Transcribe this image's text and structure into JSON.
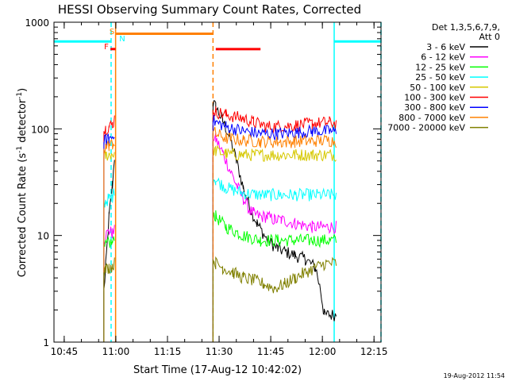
{
  "chart_data": {
    "type": "line",
    "title": "HESSI Observing Summary Count Rates, Corrected",
    "xlabel": "Start Time (17-Aug-12 10:42:02)",
    "ylabel_main": "Corrected Count Rate (s",
    "ylabel_sup1": "-1",
    "ylabel_mid": " detector",
    "ylabel_sup2": "-1",
    "ylabel_end": ")",
    "y_scale": "log",
    "ylim": [
      1,
      1000
    ],
    "xlim_min": [
      0,
      95
    ],
    "x_unit": "minutes after 10:42:02",
    "x_ticks": [
      {
        "label": "10:45",
        "min": 2.97
      },
      {
        "label": "11:00",
        "min": 17.97
      },
      {
        "label": "11:15",
        "min": 32.97
      },
      {
        "label": "11:30",
        "min": 47.97
      },
      {
        "label": "11:45",
        "min": 62.97
      },
      {
        "label": "12:00",
        "min": 77.97
      },
      {
        "label": "12:15",
        "min": 92.97
      }
    ],
    "y_ticks": [
      {
        "label": "1",
        "value": 1
      },
      {
        "label": "10",
        "value": 10
      },
      {
        "label": "100",
        "value": 100
      },
      {
        "label": "1000",
        "value": 1000
      }
    ],
    "legend_header": [
      "Det 1,3,5,6,7,9,",
      "Att 0"
    ],
    "legend_position": "right",
    "footer_date": "19-Aug-2012 11:54",
    "data_gaps": [
      [
        0,
        14.5
      ],
      [
        17.9,
        46.2
      ],
      [
        82.0,
        95
      ]
    ],
    "series": [
      {
        "name": "3 - 6 keV",
        "color": "#000000",
        "x": [
          14.5,
          15.0,
          16.0,
          17.0,
          17.6,
          46.2,
          47.0,
          49.0,
          51.0,
          53.0,
          55.0,
          57.0,
          59.0,
          62.0,
          65.0,
          70.0,
          73.0,
          76.0,
          77.5,
          78.5,
          80.0,
          82.0
        ],
        "y": [
          3,
          5,
          15,
          30,
          55,
          175,
          160,
          120,
          85,
          50,
          28,
          18,
          13,
          9,
          7.5,
          6.5,
          6,
          5,
          3,
          1.8,
          1.8,
          1.8
        ]
      },
      {
        "name": "6 - 12 keV",
        "color": "#ff00ff",
        "x": [
          14.5,
          15.0,
          16.0,
          17.0,
          17.6,
          46.2,
          47.0,
          49.0,
          51.0,
          53.0,
          55.0,
          57.0,
          58.0,
          60.0,
          62.0,
          64.0,
          66.0,
          70.0,
          75.0,
          80.0,
          82.0
        ],
        "y": [
          9,
          10,
          11,
          10.5,
          11,
          85,
          80,
          60,
          42,
          30,
          22,
          17,
          16,
          15,
          15,
          14,
          14,
          13,
          12,
          12,
          12
        ]
      },
      {
        "name": "12 - 25 keV",
        "color": "#00ff00",
        "x": [
          14.5,
          15.0,
          16.0,
          17.0,
          17.6,
          46.2,
          47.0,
          50.0,
          55.0,
          60.0,
          65.0,
          70.0,
          75.0,
          80.0,
          82.0
        ],
        "y": [
          7.5,
          8,
          8.5,
          8.5,
          9,
          16,
          15,
          12,
          10,
          9,
          9,
          9,
          9,
          9,
          9
        ]
      },
      {
        "name": "25 - 50 keV",
        "color": "#00ffff",
        "x": [
          14.5,
          15.0,
          16.0,
          17.0,
          17.6,
          46.2,
          47.0,
          50.0,
          55.0,
          60.0,
          65.0,
          70.0,
          75.0,
          80.0,
          82.0
        ],
        "y": [
          20,
          21,
          22,
          23,
          26,
          35,
          33,
          28,
          25,
          24,
          24,
          24,
          24,
          24,
          24
        ]
      },
      {
        "name": "50 - 100 keV",
        "color": "#d6c800",
        "x": [
          14.5,
          15.0,
          16.0,
          17.0,
          17.6,
          46.2,
          47.0,
          50.0,
          55.0,
          60.0,
          65.0,
          70.0,
          75.0,
          80.0,
          82.0
        ],
        "y": [
          55,
          56,
          58,
          58,
          60,
          65,
          62,
          58,
          57,
          57,
          57,
          57,
          57,
          57,
          57
        ]
      },
      {
        "name": "100 - 300 keV",
        "color": "#ff0000",
        "x": [
          14.5,
          15.0,
          16.0,
          17.0,
          17.6,
          46.2,
          47.0,
          50.0,
          55.0,
          58.0,
          62.0,
          66.0,
          70.0,
          75.0,
          80.0,
          82.0
        ],
        "y": [
          95,
          100,
          105,
          110,
          125,
          150,
          145,
          135,
          125,
          115,
          105,
          105,
          108,
          112,
          115,
          112
        ]
      },
      {
        "name": "300 - 800 keV",
        "color": "#0000ff",
        "x": [
          14.5,
          15.0,
          16.0,
          17.0,
          17.6,
          46.2,
          47.0,
          50.0,
          55.0,
          60.0,
          65.0,
          70.0,
          75.0,
          80.0,
          82.0
        ],
        "y": [
          75,
          78,
          80,
          85,
          95,
          120,
          115,
          105,
          95,
          90,
          90,
          92,
          95,
          95,
          93
        ]
      },
      {
        "name": "800 - 7000 keV",
        "color": "#ff8000",
        "x": [
          14.5,
          15.0,
          16.0,
          17.0,
          17.6,
          46.2,
          47.0,
          50.0,
          55.0,
          60.0,
          65.0,
          70.0,
          75.0,
          80.0,
          82.0
        ],
        "y": [
          65,
          68,
          70,
          72,
          75,
          95,
          90,
          82,
          78,
          76,
          75,
          76,
          77,
          78,
          76
        ]
      },
      {
        "name": "7000 - 20000 keV",
        "color": "#808000",
        "x": [
          14.5,
          15.0,
          16.0,
          17.0,
          17.6,
          46.2,
          47.0,
          49.0,
          52.0,
          55.0,
          58.0,
          61.0,
          64.0,
          67.0,
          70.0,
          73.0,
          76.0,
          79.0,
          82.0
        ],
        "y": [
          4.5,
          4.8,
          5,
          5.2,
          5.5,
          6,
          5.5,
          5,
          4.5,
          4,
          3.8,
          3.5,
          3.2,
          3.5,
          4,
          4.5,
          5,
          5.5,
          5.5
        ]
      }
    ],
    "flags": [
      {
        "label": "S",
        "color": "#ff8000",
        "segments": [
          [
            17.9,
            46.2
          ]
        ],
        "level": 780
      },
      {
        "label": "N",
        "color": "#00ffff",
        "segments": [
          [
            0,
            16.6
          ],
          [
            81.4,
            95
          ]
        ],
        "level": 660
      },
      {
        "label": "F",
        "color": "#ff0000",
        "segments": [
          [
            16.4,
            17.9
          ],
          [
            47.0,
            60.0
          ]
        ],
        "level": 560
      }
    ],
    "vlines": [
      {
        "min": 17.9,
        "color": "#ff8000",
        "dash": false
      },
      {
        "min": 46.2,
        "color": "#ff8000",
        "dash": true
      },
      {
        "min": 16.6,
        "color": "#00ffff",
        "dash": true
      },
      {
        "min": 81.4,
        "color": "#00ffff",
        "dash": false
      },
      {
        "min": 95.0,
        "color": "#00ffff",
        "dash": true
      }
    ]
  }
}
